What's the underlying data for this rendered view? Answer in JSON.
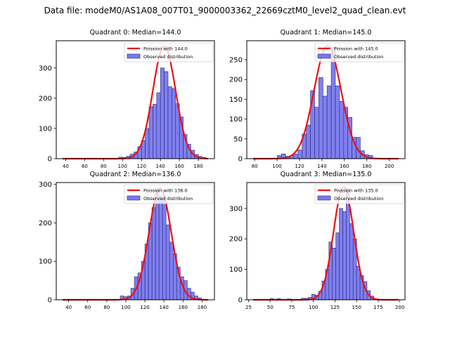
{
  "suptitle": "Data file: modeM0/AS1A08_007T01_9000003362_22669cztM0_level2_quad_clean.evt",
  "colors": {
    "bar_fill": "#7878ee",
    "bar_edge": "#2a2a7a",
    "curve": "#ee1111"
  },
  "chart_data": [
    {
      "type": "bar",
      "title": "Quadrant 0: Median=144.0",
      "legend": [
        "Poission with 144.0",
        "Observed distribution"
      ],
      "legend_position": "top-right",
      "xlim": [
        30,
        197
      ],
      "ylim": [
        0,
        390
      ],
      "xticks": [
        40,
        60,
        80,
        100,
        120,
        140,
        160,
        180
      ],
      "yticks": [
        0,
        100,
        200,
        300
      ],
      "bin_width": 4,
      "bins": [
        98,
        102,
        106,
        110,
        114,
        118,
        122,
        126,
        130,
        134,
        138,
        142,
        146,
        150,
        154,
        158,
        162,
        166,
        170,
        174,
        178,
        182,
        186
      ],
      "counts": [
        5,
        4,
        8,
        15,
        22,
        40,
        60,
        100,
        172,
        180,
        218,
        300,
        288,
        238,
        232,
        182,
        138,
        80,
        48,
        28,
        14,
        8,
        4
      ],
      "poisson_mean": 144.0,
      "poisson_peak": 372
    },
    {
      "type": "bar",
      "title": "Quadrant 1: Median=145.0",
      "legend": [
        "Poission with 145.0",
        "Observed distribution"
      ],
      "legend_position": "top-right",
      "xlim": [
        73,
        214
      ],
      "ylim": [
        0,
        298
      ],
      "xticks": [
        80,
        100,
        120,
        140,
        160,
        180,
        200
      ],
      "yticks": [
        0,
        50,
        100,
        150,
        200,
        250
      ],
      "bin_width": 3.7,
      "bins": [
        102,
        105.7,
        109.4,
        113.1,
        116.8,
        120.5,
        124.2,
        127.9,
        131.6,
        135.3,
        139,
        142.7,
        146.4,
        150.1,
        153.8,
        157.5,
        161.2,
        164.9,
        168.6,
        172.3,
        176,
        179.7,
        183.4
      ],
      "counts": [
        8,
        12,
        6,
        8,
        12,
        22,
        62,
        85,
        172,
        130,
        205,
        158,
        184,
        282,
        184,
        145,
        130,
        104,
        54,
        54,
        20,
        10,
        8
      ],
      "poisson_mean": 145.0,
      "poisson_peak": 285
    },
    {
      "type": "bar",
      "title": "Quadrant 2: Median=136.0",
      "legend": [
        "Poission with 136.0",
        "Observed distribution"
      ],
      "legend_position": "top-right",
      "xlim": [
        27,
        193
      ],
      "ylim": [
        0,
        305
      ],
      "xticks": [
        40,
        60,
        80,
        100,
        120,
        140,
        160,
        180
      ],
      "yticks": [
        0,
        100,
        200,
        300
      ],
      "bin_width": 3.7,
      "bins": [
        96,
        99.7,
        103.4,
        107.1,
        110.8,
        114.5,
        118.2,
        121.9,
        125.6,
        129.3,
        133,
        136.7,
        140.4,
        144.1,
        147.8,
        151.5,
        155.2,
        158.9,
        162.6,
        166.3,
        170,
        173.7,
        177.4
      ],
      "counts": [
        10,
        8,
        10,
        30,
        60,
        70,
        100,
        145,
        200,
        240,
        285,
        270,
        265,
        195,
        150,
        120,
        85,
        60,
        50,
        30,
        20,
        10,
        5
      ],
      "poisson_mean": 136.0,
      "poisson_peak": 290
    },
    {
      "type": "bar",
      "title": "Quadrant 3: Median=135.0",
      "legend": [
        "Poission with 135.0",
        "Observed distribution"
      ],
      "legend_position": "top-right",
      "xlim": [
        23,
        206
      ],
      "ylim": [
        0,
        385
      ],
      "xticks": [
        25,
        50,
        75,
        100,
        125,
        150,
        175,
        200
      ],
      "yticks": [
        0,
        100,
        200,
        300
      ],
      "bin_width": 4,
      "bins": [
        52,
        60,
        72,
        88,
        92,
        96,
        100,
        104,
        108,
        112,
        116,
        120,
        124,
        128,
        132,
        136,
        140,
        144,
        148,
        152,
        156,
        160,
        164,
        168
      ],
      "counts": [
        4,
        4,
        3,
        5,
        5,
        8,
        18,
        15,
        28,
        62,
        100,
        190,
        170,
        220,
        300,
        290,
        365,
        250,
        200,
        110,
        80,
        60,
        30,
        12
      ],
      "poisson_mean": 135.0,
      "poisson_peak": 370
    }
  ]
}
